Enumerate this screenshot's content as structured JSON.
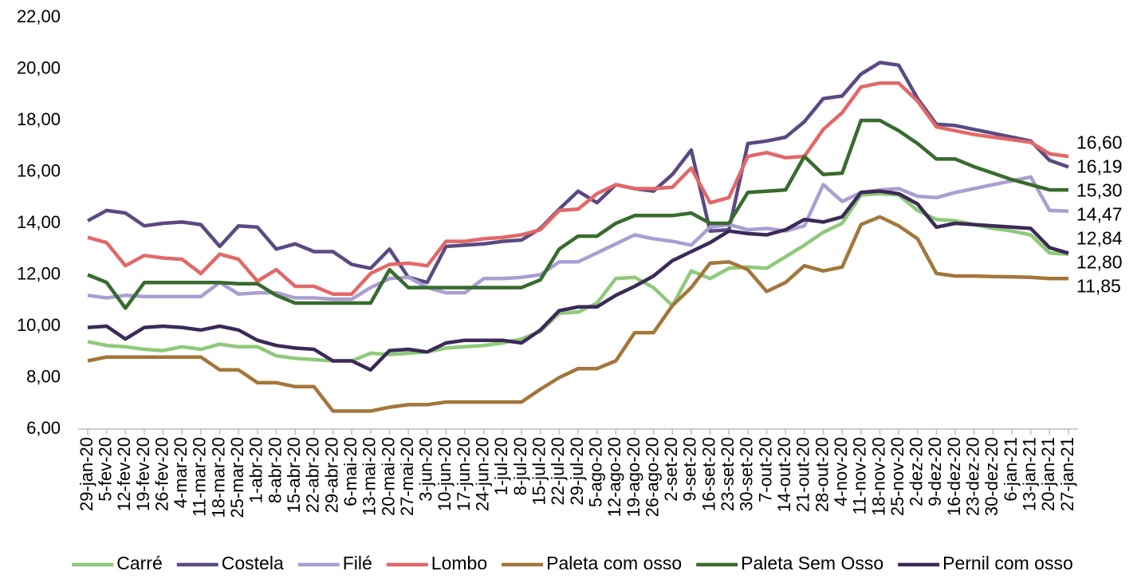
{
  "chart_data": {
    "type": "line",
    "categories": [
      "29-jan-20",
      "5-fev-20",
      "12-fev-20",
      "19-fev-20",
      "26-fev-20",
      "4-mar-20",
      "11-mar-20",
      "18-mar-20",
      "25-mar-20",
      "1-abr-20",
      "8-abr-20",
      "15-abr-20",
      "22-abr-20",
      "29-abr-20",
      "6-mai-20",
      "13-mai-20",
      "20-mai-20",
      "27-mai-20",
      "3-jun-20",
      "10-jun-20",
      "17-jun-20",
      "24-jun-20",
      "1-jul-20",
      "8-jul-20",
      "15-jul-20",
      "22-jul-20",
      "29-jul-20",
      "5-ago-20",
      "12-ago-20",
      "19-ago-20",
      "26-ago-20",
      "2-set-20",
      "9-set-20",
      "16-set-20",
      "23-set-20",
      "30-set-20",
      "7-out-20",
      "14-out-20",
      "21-out-20",
      "28-out-20",
      "4-nov-20",
      "11-nov-20",
      "18-nov-20",
      "25-nov-20",
      "2-dez-20",
      "9-dez-20",
      "16-dez-20",
      "23-dez-20",
      "30-dez-20",
      "6-jan-21",
      "13-jan-21",
      "20-jan-21",
      "27-jan-21"
    ],
    "ylim": [
      6,
      22
    ],
    "yticks": [
      {
        "value": 6,
        "label": "6,00"
      },
      {
        "value": 8,
        "label": "8,00"
      },
      {
        "value": 10,
        "label": "10,00"
      },
      {
        "value": 12,
        "label": "12,00"
      },
      {
        "value": 14,
        "label": "14,00"
      },
      {
        "value": 16,
        "label": "16,00"
      },
      {
        "value": 18,
        "label": "18,00"
      },
      {
        "value": 20,
        "label": "20,00"
      },
      {
        "value": 22,
        "label": "22,00"
      }
    ],
    "grid": false,
    "legend": "bottom",
    "series": [
      {
        "name": "Carré",
        "color": "#8fc97a",
        "values": [
          9.4,
          9.25,
          9.2,
          9.1,
          9.05,
          9.2,
          9.1,
          9.3,
          9.2,
          9.2,
          8.85,
          8.75,
          8.7,
          8.65,
          8.65,
          8.95,
          8.9,
          8.95,
          9.0,
          9.15,
          9.2,
          9.25,
          9.35,
          9.5,
          9.8,
          10.5,
          10.55,
          10.9,
          11.85,
          11.9,
          11.5,
          10.8,
          12.15,
          11.85,
          12.25,
          12.3,
          12.25,
          12.7,
          13.15,
          13.65,
          14.0,
          15.1,
          15.15,
          15.1,
          14.5,
          14.15,
          14.1,
          13.95,
          13.8,
          13.7,
          13.55,
          12.85,
          12.8
        ],
        "value_labels": [
          null,
          null,
          null,
          null,
          null,
          null,
          null,
          null,
          null,
          null,
          null,
          null,
          null,
          null,
          null,
          null,
          null,
          null,
          null,
          null,
          null,
          null,
          null,
          null,
          null,
          null,
          null,
          null,
          null,
          null,
          null,
          null,
          null,
          null,
          null,
          null,
          null,
          null,
          null,
          null,
          null,
          null,
          null,
          null,
          null,
          null,
          null,
          null,
          null,
          null,
          null,
          null,
          "12,80"
        ]
      },
      {
        "name": "Costela",
        "color": "#5b4a82",
        "values": [
          14.1,
          14.5,
          14.4,
          13.9,
          14.0,
          14.05,
          13.95,
          13.1,
          13.9,
          13.85,
          13.0,
          13.2,
          12.9,
          12.9,
          12.4,
          12.25,
          13.0,
          11.9,
          11.7,
          13.1,
          13.15,
          13.2,
          13.3,
          13.35,
          13.8,
          14.55,
          15.25,
          14.8,
          15.5,
          15.35,
          15.25,
          15.9,
          16.85,
          13.7,
          13.75,
          17.1,
          17.2,
          17.35,
          17.95,
          18.85,
          18.95,
          19.8,
          20.25,
          20.15,
          18.85,
          17.85,
          17.8,
          17.65,
          17.5,
          17.35,
          17.2,
          16.45,
          16.19
        ],
        "value_labels": [
          null,
          null,
          null,
          null,
          null,
          null,
          null,
          null,
          null,
          null,
          null,
          null,
          null,
          null,
          null,
          null,
          null,
          null,
          null,
          null,
          null,
          null,
          null,
          null,
          null,
          null,
          null,
          null,
          null,
          null,
          null,
          null,
          null,
          null,
          null,
          null,
          null,
          null,
          null,
          null,
          null,
          null,
          null,
          null,
          null,
          null,
          null,
          null,
          null,
          null,
          null,
          null,
          "16,19"
        ]
      },
      {
        "name": "Filé",
        "color": "#a99fd2",
        "values": [
          11.2,
          11.1,
          11.2,
          11.15,
          11.15,
          11.15,
          11.15,
          11.7,
          11.25,
          11.3,
          11.3,
          11.1,
          11.1,
          11.05,
          11.05,
          11.5,
          11.85,
          11.9,
          11.5,
          11.3,
          11.3,
          11.85,
          11.85,
          11.9,
          12.0,
          12.5,
          12.5,
          12.85,
          13.2,
          13.55,
          13.4,
          13.3,
          13.15,
          13.85,
          13.95,
          13.75,
          13.8,
          13.7,
          13.9,
          15.5,
          14.85,
          15.2,
          15.3,
          15.35,
          15.05,
          15.0,
          15.2,
          15.35,
          15.5,
          15.65,
          15.8,
          14.5,
          14.47
        ],
        "value_labels": [
          null,
          null,
          null,
          null,
          null,
          null,
          null,
          null,
          null,
          null,
          null,
          null,
          null,
          null,
          null,
          null,
          null,
          null,
          null,
          null,
          null,
          null,
          null,
          null,
          null,
          null,
          null,
          null,
          null,
          null,
          null,
          null,
          null,
          null,
          null,
          null,
          null,
          null,
          null,
          null,
          null,
          null,
          null,
          null,
          null,
          null,
          null,
          null,
          null,
          null,
          null,
          null,
          "14,47"
        ]
      },
      {
        "name": "Lombo",
        "color": "#e26868",
        "values": [
          13.45,
          13.25,
          12.35,
          12.75,
          12.65,
          12.6,
          12.05,
          12.8,
          12.6,
          11.75,
          12.2,
          11.55,
          11.55,
          11.25,
          11.25,
          12.05,
          12.4,
          12.45,
          12.35,
          13.3,
          13.3,
          13.4,
          13.45,
          13.55,
          13.75,
          14.5,
          14.55,
          15.15,
          15.5,
          15.35,
          15.35,
          15.4,
          16.15,
          14.8,
          15.0,
          16.6,
          16.75,
          16.55,
          16.6,
          17.65,
          18.3,
          19.3,
          19.45,
          19.45,
          18.75,
          17.75,
          17.6,
          17.45,
          17.35,
          17.25,
          17.15,
          16.7,
          16.6
        ],
        "value_labels": [
          null,
          null,
          null,
          null,
          null,
          null,
          null,
          null,
          null,
          null,
          null,
          null,
          null,
          null,
          null,
          null,
          null,
          null,
          null,
          null,
          null,
          null,
          null,
          null,
          null,
          null,
          null,
          null,
          null,
          null,
          null,
          null,
          null,
          null,
          null,
          null,
          null,
          null,
          null,
          null,
          null,
          null,
          null,
          null,
          null,
          null,
          null,
          null,
          null,
          null,
          null,
          null,
          "16,60"
        ]
      },
      {
        "name": "Paleta com osso",
        "color": "#a3763a",
        "values": [
          8.65,
          8.8,
          8.8,
          8.8,
          8.8,
          8.8,
          8.8,
          8.3,
          8.3,
          7.8,
          7.8,
          7.65,
          7.65,
          6.7,
          6.7,
          6.7,
          6.85,
          6.95,
          6.95,
          7.05,
          7.05,
          7.05,
          7.05,
          7.05,
          7.55,
          8.0,
          8.35,
          8.35,
          8.65,
          9.75,
          9.75,
          10.8,
          11.5,
          12.45,
          12.5,
          12.2,
          11.35,
          11.7,
          12.35,
          12.15,
          12.3,
          13.95,
          14.25,
          13.9,
          13.4,
          12.05,
          11.95,
          11.95,
          11.93,
          11.92,
          11.9,
          11.85,
          11.85
        ],
        "value_labels": [
          null,
          null,
          null,
          null,
          null,
          null,
          null,
          null,
          null,
          null,
          null,
          null,
          null,
          null,
          null,
          null,
          null,
          null,
          null,
          null,
          null,
          null,
          null,
          null,
          null,
          null,
          null,
          null,
          null,
          null,
          null,
          null,
          null,
          null,
          null,
          null,
          null,
          null,
          null,
          null,
          null,
          null,
          null,
          null,
          null,
          null,
          null,
          null,
          null,
          null,
          null,
          null,
          "11,85"
        ]
      },
      {
        "name": "Paleta Sem Osso",
        "color": "#386b2e",
        "values": [
          12.0,
          11.7,
          10.7,
          11.7,
          11.7,
          11.7,
          11.7,
          11.7,
          11.65,
          11.65,
          11.2,
          10.9,
          10.9,
          10.9,
          10.9,
          10.9,
          12.2,
          11.5,
          11.5,
          11.5,
          11.5,
          11.5,
          11.5,
          11.5,
          11.8,
          13.0,
          13.5,
          13.5,
          14.0,
          14.3,
          14.3,
          14.3,
          14.4,
          14.0,
          14.0,
          15.2,
          15.25,
          15.3,
          16.6,
          15.9,
          15.95,
          18.0,
          18.0,
          17.6,
          17.1,
          16.5,
          16.5,
          16.2,
          15.95,
          15.7,
          15.5,
          15.3,
          15.3
        ],
        "value_labels": [
          null,
          null,
          null,
          null,
          null,
          null,
          null,
          null,
          null,
          null,
          null,
          null,
          null,
          null,
          null,
          null,
          null,
          null,
          null,
          null,
          null,
          null,
          null,
          null,
          null,
          null,
          null,
          null,
          null,
          null,
          null,
          null,
          null,
          null,
          null,
          null,
          null,
          null,
          null,
          null,
          null,
          null,
          null,
          null,
          null,
          null,
          null,
          null,
          null,
          null,
          null,
          null,
          "15,30"
        ]
      },
      {
        "name": "Pernil com osso",
        "color": "#3b2a58",
        "values": [
          9.95,
          10.0,
          9.5,
          9.95,
          10.0,
          9.95,
          9.85,
          10.0,
          9.85,
          9.45,
          9.25,
          9.15,
          9.1,
          8.65,
          8.65,
          8.3,
          9.05,
          9.1,
          9.0,
          9.35,
          9.45,
          9.45,
          9.45,
          9.35,
          9.85,
          10.6,
          10.75,
          10.75,
          11.2,
          11.55,
          11.95,
          12.55,
          12.9,
          13.25,
          13.7,
          13.6,
          13.55,
          13.75,
          14.15,
          14.05,
          14.25,
          15.2,
          15.25,
          15.15,
          14.75,
          13.85,
          14.0,
          13.95,
          13.9,
          13.85,
          13.8,
          13.05,
          12.84
        ],
        "value_labels": [
          null,
          null,
          null,
          null,
          null,
          null,
          null,
          null,
          null,
          null,
          null,
          null,
          null,
          null,
          null,
          null,
          null,
          null,
          null,
          null,
          null,
          null,
          null,
          null,
          null,
          null,
          null,
          null,
          null,
          null,
          null,
          null,
          null,
          null,
          null,
          null,
          null,
          null,
          null,
          null,
          null,
          null,
          null,
          null,
          null,
          null,
          null,
          null,
          null,
          null,
          null,
          null,
          "12,84"
        ]
      }
    ]
  }
}
